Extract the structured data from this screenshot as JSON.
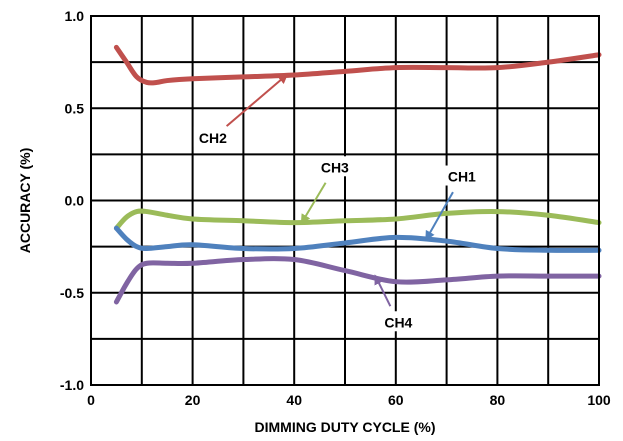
{
  "chart_data": {
    "type": "line",
    "xlabel": "DIMMING DUTY CYCLE (%)",
    "ylabel": "ACCURACY (%)",
    "xlim": [
      0,
      100
    ],
    "ylim": [
      -1.0,
      1.0
    ],
    "grid": true,
    "x_ticks": [
      0,
      20,
      40,
      60,
      80,
      100
    ],
    "y_ticks": [
      -1.0,
      -0.5,
      0.0,
      0.5,
      1.0
    ],
    "x_tick_labels": [
      "0",
      "20",
      "40",
      "60",
      "80",
      "100"
    ],
    "y_tick_labels": [
      "-1.0",
      "-0.5",
      "0.0",
      "0.5",
      "1.0"
    ],
    "series": [
      {
        "name": "CH2",
        "color": "#c0504d",
        "x": [
          5,
          7,
          9,
          11,
          13,
          15,
          20,
          30,
          40,
          50,
          60,
          70,
          80,
          90,
          100
        ],
        "y": [
          0.83,
          0.75,
          0.67,
          0.64,
          0.64,
          0.65,
          0.66,
          0.67,
          0.68,
          0.7,
          0.72,
          0.72,
          0.72,
          0.75,
          0.79
        ]
      },
      {
        "name": "CH3",
        "color": "#9bbb59",
        "x": [
          5,
          7,
          9,
          11,
          15,
          20,
          30,
          40,
          50,
          60,
          70,
          80,
          90,
          100
        ],
        "y": [
          -0.15,
          -0.09,
          -0.06,
          -0.06,
          -0.08,
          -0.1,
          -0.11,
          -0.12,
          -0.11,
          -0.1,
          -0.07,
          -0.06,
          -0.08,
          -0.12
        ]
      },
      {
        "name": "CH1",
        "color": "#4f81bd",
        "x": [
          5,
          7,
          9,
          11,
          15,
          20,
          30,
          40,
          50,
          60,
          70,
          80,
          90,
          100
        ],
        "y": [
          -0.15,
          -0.21,
          -0.25,
          -0.26,
          -0.25,
          -0.24,
          -0.26,
          -0.26,
          -0.23,
          -0.2,
          -0.22,
          -0.26,
          -0.27,
          -0.27
        ]
      },
      {
        "name": "CH4",
        "color": "#8064a2",
        "x": [
          5,
          7,
          9,
          11,
          15,
          20,
          30,
          40,
          50,
          60,
          70,
          80,
          90,
          100
        ],
        "y": [
          -0.55,
          -0.45,
          -0.37,
          -0.34,
          -0.34,
          -0.34,
          -0.32,
          -0.32,
          -0.38,
          -0.44,
          -0.43,
          -0.41,
          -0.41,
          -0.41
        ]
      }
    ],
    "annotations": [
      {
        "text": "CH2",
        "series": "CH2",
        "label_x": 24,
        "label_y": 0.34,
        "arrow_to_x": 38.5,
        "arrow_to_y": 0.68
      },
      {
        "text": "CH3",
        "series": "CH3",
        "label_x": 48,
        "label_y": 0.18,
        "arrow_to_x": 41.5,
        "arrow_to_y": -0.12
      },
      {
        "text": "CH1",
        "series": "CH1",
        "label_x": 73,
        "label_y": 0.13,
        "arrow_to_x": 66,
        "arrow_to_y": -0.21
      },
      {
        "text": "CH4",
        "series": "CH4",
        "label_x": 60.5,
        "label_y": -0.66,
        "arrow_to_x": 56,
        "arrow_to_y": -0.41
      }
    ]
  }
}
